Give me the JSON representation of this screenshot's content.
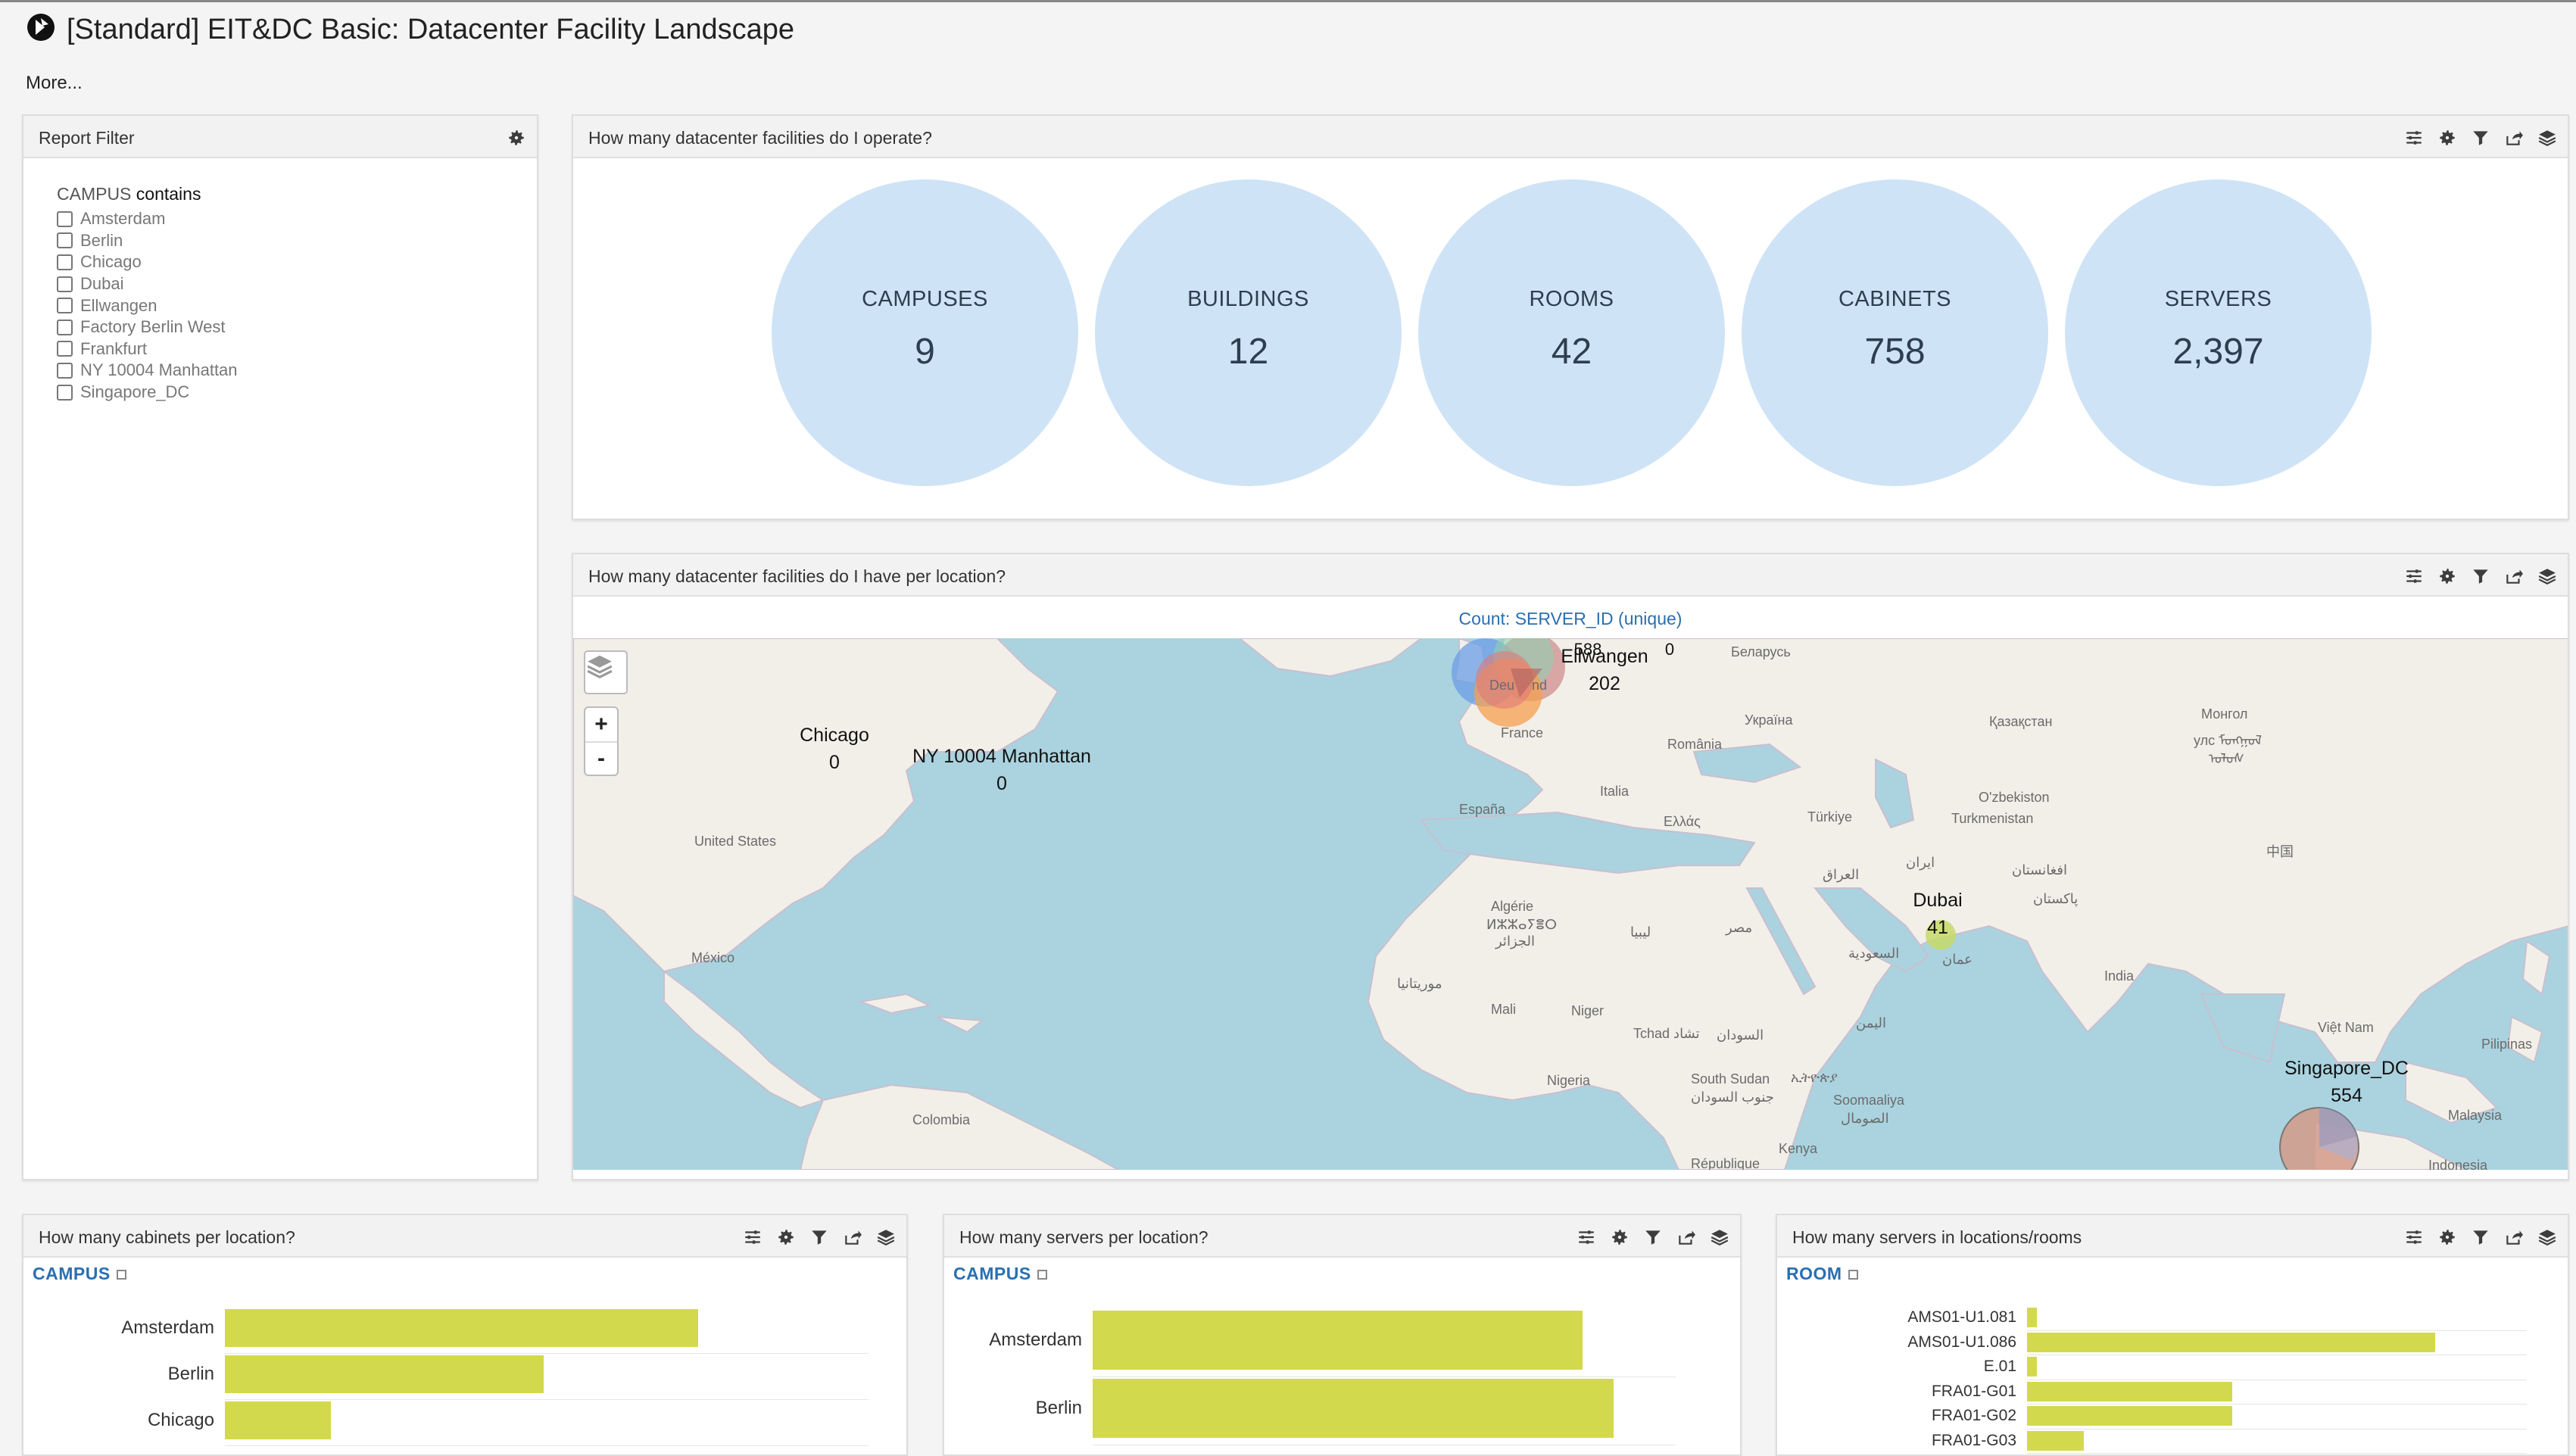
{
  "app": {
    "title": "[Standard] EIT&DC Basic: Datacenter Facility Landscape",
    "more": "More..."
  },
  "filter": {
    "title": "Report Filter",
    "field": "CAMPUS",
    "operator": "contains",
    "options": [
      "Amsterdam",
      "Berlin",
      "Chicago",
      "Dubai",
      "Ellwangen",
      "Factory Berlin West",
      "Frankfurt",
      "NY 10004 Manhattan",
      "Singapore_DC"
    ]
  },
  "kpi_panel": {
    "title": "How many datacenter facilities do I operate?",
    "kpis": [
      {
        "label": "CAMPUSES",
        "value": "9"
      },
      {
        "label": "BUILDINGS",
        "value": "12"
      },
      {
        "label": "ROOMS",
        "value": "42"
      },
      {
        "label": "CABINETS",
        "value": "758"
      },
      {
        "label": "SERVERS",
        "value": "2,397"
      }
    ]
  },
  "map_panel": {
    "title": "How many datacenter facilities do I have per location?",
    "caption": "Count: SERVER_ID (unique)",
    "zoom_in": "+",
    "zoom_out": "-",
    "locations": [
      {
        "name": "Chicago",
        "value": "0"
      },
      {
        "name": "NY 10004 Manhattan",
        "value": "0"
      },
      {
        "name": "Ellwangen",
        "value": "202"
      },
      {
        "name": "Dubai",
        "value": "41"
      },
      {
        "name": "Singapore_DC",
        "value": "554"
      }
    ],
    "overlap_labels": [
      "588",
      "0"
    ],
    "countries": [
      "United States",
      "México",
      "Colombia",
      "France",
      "España",
      "Italia",
      "România",
      "Україна",
      "Беларусь",
      "Қазақстан",
      "Монгол",
      "улс ᠮᠣᠩᠭᠣᠯ",
      "ᠤᠯᠤᠰ",
      "O'zbekiston",
      "Turkmenistan",
      "Türkiye",
      "Ελλάς",
      "Algérie",
      "ⵍⵣⵣⴰⵢⴻⵔ",
      "الجزائر",
      "ليبيا",
      "مصر",
      "موريتانيا",
      "Mali",
      "Niger",
      "Tchad تشاد",
      "السودان",
      "Nigeria",
      "South Sudan",
      "جنوب السودان",
      "ኢትዮጵያ",
      "Soomaaliya",
      "الصومال",
      "Kenya",
      "République",
      "العراق",
      "ایران",
      "افغانستان",
      "پاکستان",
      "السعودية",
      "عمان",
      "اليمن",
      "India",
      "中国",
      "Việt Nam",
      "Pilipinas",
      "Malaysia",
      "Indonesia",
      "Deu",
      "nd"
    ]
  },
  "cabinets_panel": {
    "title": "How many cabinets per location?",
    "dimension": "CAMPUS",
    "chart_data": {
      "type": "bar",
      "categories": [
        "Amsterdam",
        "Berlin",
        "Chicago"
      ],
      "values": [
        147,
        99,
        33
      ]
    }
  },
  "servers_panel": {
    "title": "How many servers per location?",
    "dimension": "CAMPUS",
    "chart_data": {
      "type": "bar",
      "categories": [
        "Amsterdam",
        "Berlin"
      ],
      "values": [
        588,
        625
      ]
    }
  },
  "rooms_panel": {
    "title": "How many servers in locations/rooms",
    "dimension": "ROOM",
    "chart_data": {
      "type": "bar",
      "categories": [
        "AMS01-U1.081",
        "AMS01-U1.086",
        "E.01",
        "FRA01-G01",
        "FRA01-G02",
        "FRA01-G03"
      ],
      "values": [
        6,
        245,
        6,
        123,
        123,
        34
      ]
    }
  },
  "colors": {
    "kpi_circle": "#cfe3f6",
    "bar": "#d3d94c",
    "water": "#aad3df",
    "land": "#f2efe9",
    "accent": "#2a6fb0"
  }
}
